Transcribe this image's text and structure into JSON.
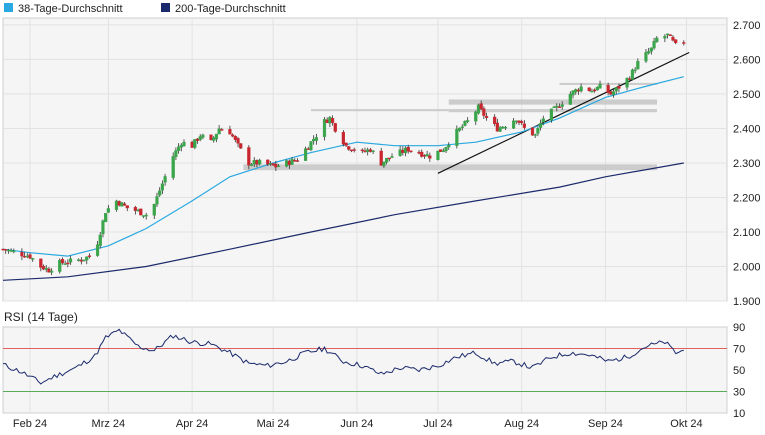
{
  "legend": [
    {
      "label": "38-Tage-Durchschnitt",
      "color": "#29a9e0"
    },
    {
      "label": "200-Tage-Durchschnitt",
      "color": "#1b2a6b"
    }
  ],
  "rsi_label": "RSI (14 Tage)",
  "colors": {
    "up": "#3aa54a",
    "down": "#c8272f",
    "sma38": "#29a9e0",
    "sma200": "#1b2a6b",
    "rsi": "#1b2a6b",
    "rsi_upper": "#e06060",
    "rsi_lower": "#5aaa5a",
    "support_band": "#c8c8c8",
    "trendline": "#111111",
    "panel_bg": "#f5f5f5"
  },
  "chart_data": {
    "type": "candlestick",
    "x_tick_labels": [
      "Feb 24",
      "Mrz 24",
      "Apr 24",
      "Mai 24",
      "Jun 24",
      "Jul 24",
      "Aug 24",
      "Sep 24",
      "Okt 24"
    ],
    "x_tick_dates": [
      "2024-02-01",
      "2024-03-01",
      "2024-04-01",
      "2024-05-01",
      "2024-06-01",
      "2024-07-01",
      "2024-08-01",
      "2024-09-01",
      "2024-10-01"
    ],
    "price_axis": {
      "ticks": [
        1.9,
        2.0,
        2.1,
        2.2,
        2.3,
        2.4,
        2.5,
        2.6,
        2.7
      ],
      "range": [
        1.9,
        2.72
      ],
      "labels": [
        "1.900",
        "2.000",
        "2.100",
        "2.200",
        "2.300",
        "2.400",
        "2.500",
        "2.600",
        "2.700"
      ]
    },
    "rsi_axis": {
      "ticks": [
        10,
        30,
        50,
        70,
        90
      ],
      "range": [
        10,
        90
      ],
      "overbought": 70,
      "oversold": 30
    },
    "start_date": "2024-01-22",
    "end_date": "2024-09-30",
    "ohlc_anchors": [
      [
        "2024-01-22",
        2.05
      ],
      [
        "2024-02-01",
        2.03
      ],
      [
        "2024-02-05",
        2.0
      ],
      [
        "2024-02-08",
        1.99
      ],
      [
        "2024-02-12",
        2.01
      ],
      [
        "2024-02-20",
        2.02
      ],
      [
        "2024-02-23",
        2.03
      ],
      [
        "2024-02-26",
        2.07
      ],
      [
        "2024-02-29",
        2.16
      ],
      [
        "2024-03-04",
        2.19
      ],
      [
        "2024-03-08",
        2.17
      ],
      [
        "2024-03-12",
        2.16
      ],
      [
        "2024-03-15",
        2.15
      ],
      [
        "2024-03-18",
        2.18
      ],
      [
        "2024-03-22",
        2.26
      ],
      [
        "2024-03-25",
        2.32
      ],
      [
        "2024-03-28",
        2.36
      ],
      [
        "2024-04-01",
        2.35
      ],
      [
        "2024-04-04",
        2.38
      ],
      [
        "2024-04-08",
        2.36
      ],
      [
        "2024-04-11",
        2.4
      ],
      [
        "2024-04-15",
        2.39
      ],
      [
        "2024-04-18",
        2.35
      ],
      [
        "2024-04-22",
        2.3
      ],
      [
        "2024-04-26",
        2.3
      ],
      [
        "2024-05-02",
        2.29
      ],
      [
        "2024-05-06",
        2.3
      ],
      [
        "2024-05-10",
        2.31
      ],
      [
        "2024-05-14",
        2.35
      ],
      [
        "2024-05-17",
        2.38
      ],
      [
        "2024-05-20",
        2.42
      ],
      [
        "2024-05-22",
        2.43
      ],
      [
        "2024-05-24",
        2.4
      ],
      [
        "2024-05-28",
        2.35
      ],
      [
        "2024-06-03",
        2.33
      ],
      [
        "2024-06-06",
        2.34
      ],
      [
        "2024-06-10",
        2.3
      ],
      [
        "2024-06-14",
        2.32
      ],
      [
        "2024-06-20",
        2.34
      ],
      [
        "2024-06-24",
        2.33
      ],
      [
        "2024-06-28",
        2.32
      ],
      [
        "2024-07-03",
        2.34
      ],
      [
        "2024-07-08",
        2.39
      ],
      [
        "2024-07-12",
        2.42
      ],
      [
        "2024-07-16",
        2.46
      ],
      [
        "2024-07-19",
        2.43
      ],
      [
        "2024-07-23",
        2.4
      ],
      [
        "2024-07-26",
        2.41
      ],
      [
        "2024-07-30",
        2.43
      ],
      [
        "2024-08-02",
        2.4
      ],
      [
        "2024-08-06",
        2.38
      ],
      [
        "2024-08-09",
        2.43
      ],
      [
        "2024-08-14",
        2.46
      ],
      [
        "2024-08-19",
        2.5
      ],
      [
        "2024-08-23",
        2.52
      ],
      [
        "2024-08-27",
        2.51
      ],
      [
        "2024-08-30",
        2.52
      ],
      [
        "2024-09-03",
        2.5
      ],
      [
        "2024-09-06",
        2.52
      ],
      [
        "2024-09-10",
        2.55
      ],
      [
        "2024-09-13",
        2.59
      ],
      [
        "2024-09-18",
        2.63
      ],
      [
        "2024-09-20",
        2.66
      ],
      [
        "2024-09-24",
        2.67
      ],
      [
        "2024-09-27",
        2.64
      ],
      [
        "2024-09-30",
        2.65
      ]
    ],
    "sma38": [
      [
        "2024-01-22",
        2.05
      ],
      [
        "2024-02-01",
        2.04
      ],
      [
        "2024-02-15",
        2.03
      ],
      [
        "2024-03-01",
        2.06
      ],
      [
        "2024-03-15",
        2.11
      ],
      [
        "2024-04-01",
        2.19
      ],
      [
        "2024-04-15",
        2.26
      ],
      [
        "2024-05-01",
        2.3
      ],
      [
        "2024-05-15",
        2.33
      ],
      [
        "2024-06-01",
        2.36
      ],
      [
        "2024-06-15",
        2.35
      ],
      [
        "2024-07-01",
        2.35
      ],
      [
        "2024-07-15",
        2.36
      ],
      [
        "2024-08-01",
        2.39
      ],
      [
        "2024-08-15",
        2.43
      ],
      [
        "2024-09-01",
        2.49
      ],
      [
        "2024-09-15",
        2.52
      ],
      [
        "2024-09-30",
        2.55
      ]
    ],
    "sma200": [
      [
        "2024-01-22",
        1.96
      ],
      [
        "2024-02-15",
        1.97
      ],
      [
        "2024-03-15",
        2.0
      ],
      [
        "2024-04-15",
        2.05
      ],
      [
        "2024-05-15",
        2.1
      ],
      [
        "2024-06-15",
        2.15
      ],
      [
        "2024-07-15",
        2.19
      ],
      [
        "2024-08-15",
        2.23
      ],
      [
        "2024-09-01",
        2.26
      ],
      [
        "2024-09-30",
        2.3
      ]
    ],
    "rsi": [
      [
        "2024-01-22",
        55
      ],
      [
        "2024-01-29",
        48
      ],
      [
        "2024-02-05",
        38
      ],
      [
        "2024-02-10",
        44
      ],
      [
        "2024-02-18",
        52
      ],
      [
        "2024-02-25",
        63
      ],
      [
        "2024-02-29",
        80
      ],
      [
        "2024-03-05",
        87
      ],
      [
        "2024-03-12",
        72
      ],
      [
        "2024-03-18",
        68
      ],
      [
        "2024-03-25",
        82
      ],
      [
        "2024-04-01",
        76
      ],
      [
        "2024-04-08",
        74
      ],
      [
        "2024-04-15",
        66
      ],
      [
        "2024-04-22",
        56
      ],
      [
        "2024-04-29",
        54
      ],
      [
        "2024-05-06",
        58
      ],
      [
        "2024-05-13",
        66
      ],
      [
        "2024-05-20",
        70
      ],
      [
        "2024-05-27",
        58
      ],
      [
        "2024-06-03",
        54
      ],
      [
        "2024-06-10",
        46
      ],
      [
        "2024-06-17",
        52
      ],
      [
        "2024-06-24",
        50
      ],
      [
        "2024-07-01",
        54
      ],
      [
        "2024-07-08",
        62
      ],
      [
        "2024-07-15",
        66
      ],
      [
        "2024-07-22",
        56
      ],
      [
        "2024-07-29",
        58
      ],
      [
        "2024-08-05",
        52
      ],
      [
        "2024-08-12",
        62
      ],
      [
        "2024-08-19",
        66
      ],
      [
        "2024-08-26",
        64
      ],
      [
        "2024-09-02",
        58
      ],
      [
        "2024-09-09",
        62
      ],
      [
        "2024-09-16",
        72
      ],
      [
        "2024-09-23",
        76
      ],
      [
        "2024-09-27",
        66
      ],
      [
        "2024-09-30",
        68
      ]
    ],
    "support_bands": [
      {
        "start": "2024-04-20",
        "end": "2024-10-31",
        "low": 2.279,
        "high": 2.296
      },
      {
        "start": "2024-07-05",
        "end": "2024-10-31",
        "low": 2.447,
        "high": 2.456
      },
      {
        "start": "2024-07-05",
        "end": "2024-10-31",
        "low": 2.469,
        "high": 2.484
      },
      {
        "start": "2024-05-15",
        "end": "2024-07-05",
        "low": 2.45,
        "high": 2.456
      },
      {
        "start": "2024-08-15",
        "end": "2024-10-31",
        "low": 2.526,
        "high": 2.532
      }
    ],
    "trendline": {
      "start": [
        "2024-07-01",
        2.27
      ],
      "end": [
        "2024-10-02",
        2.62
      ]
    }
  }
}
